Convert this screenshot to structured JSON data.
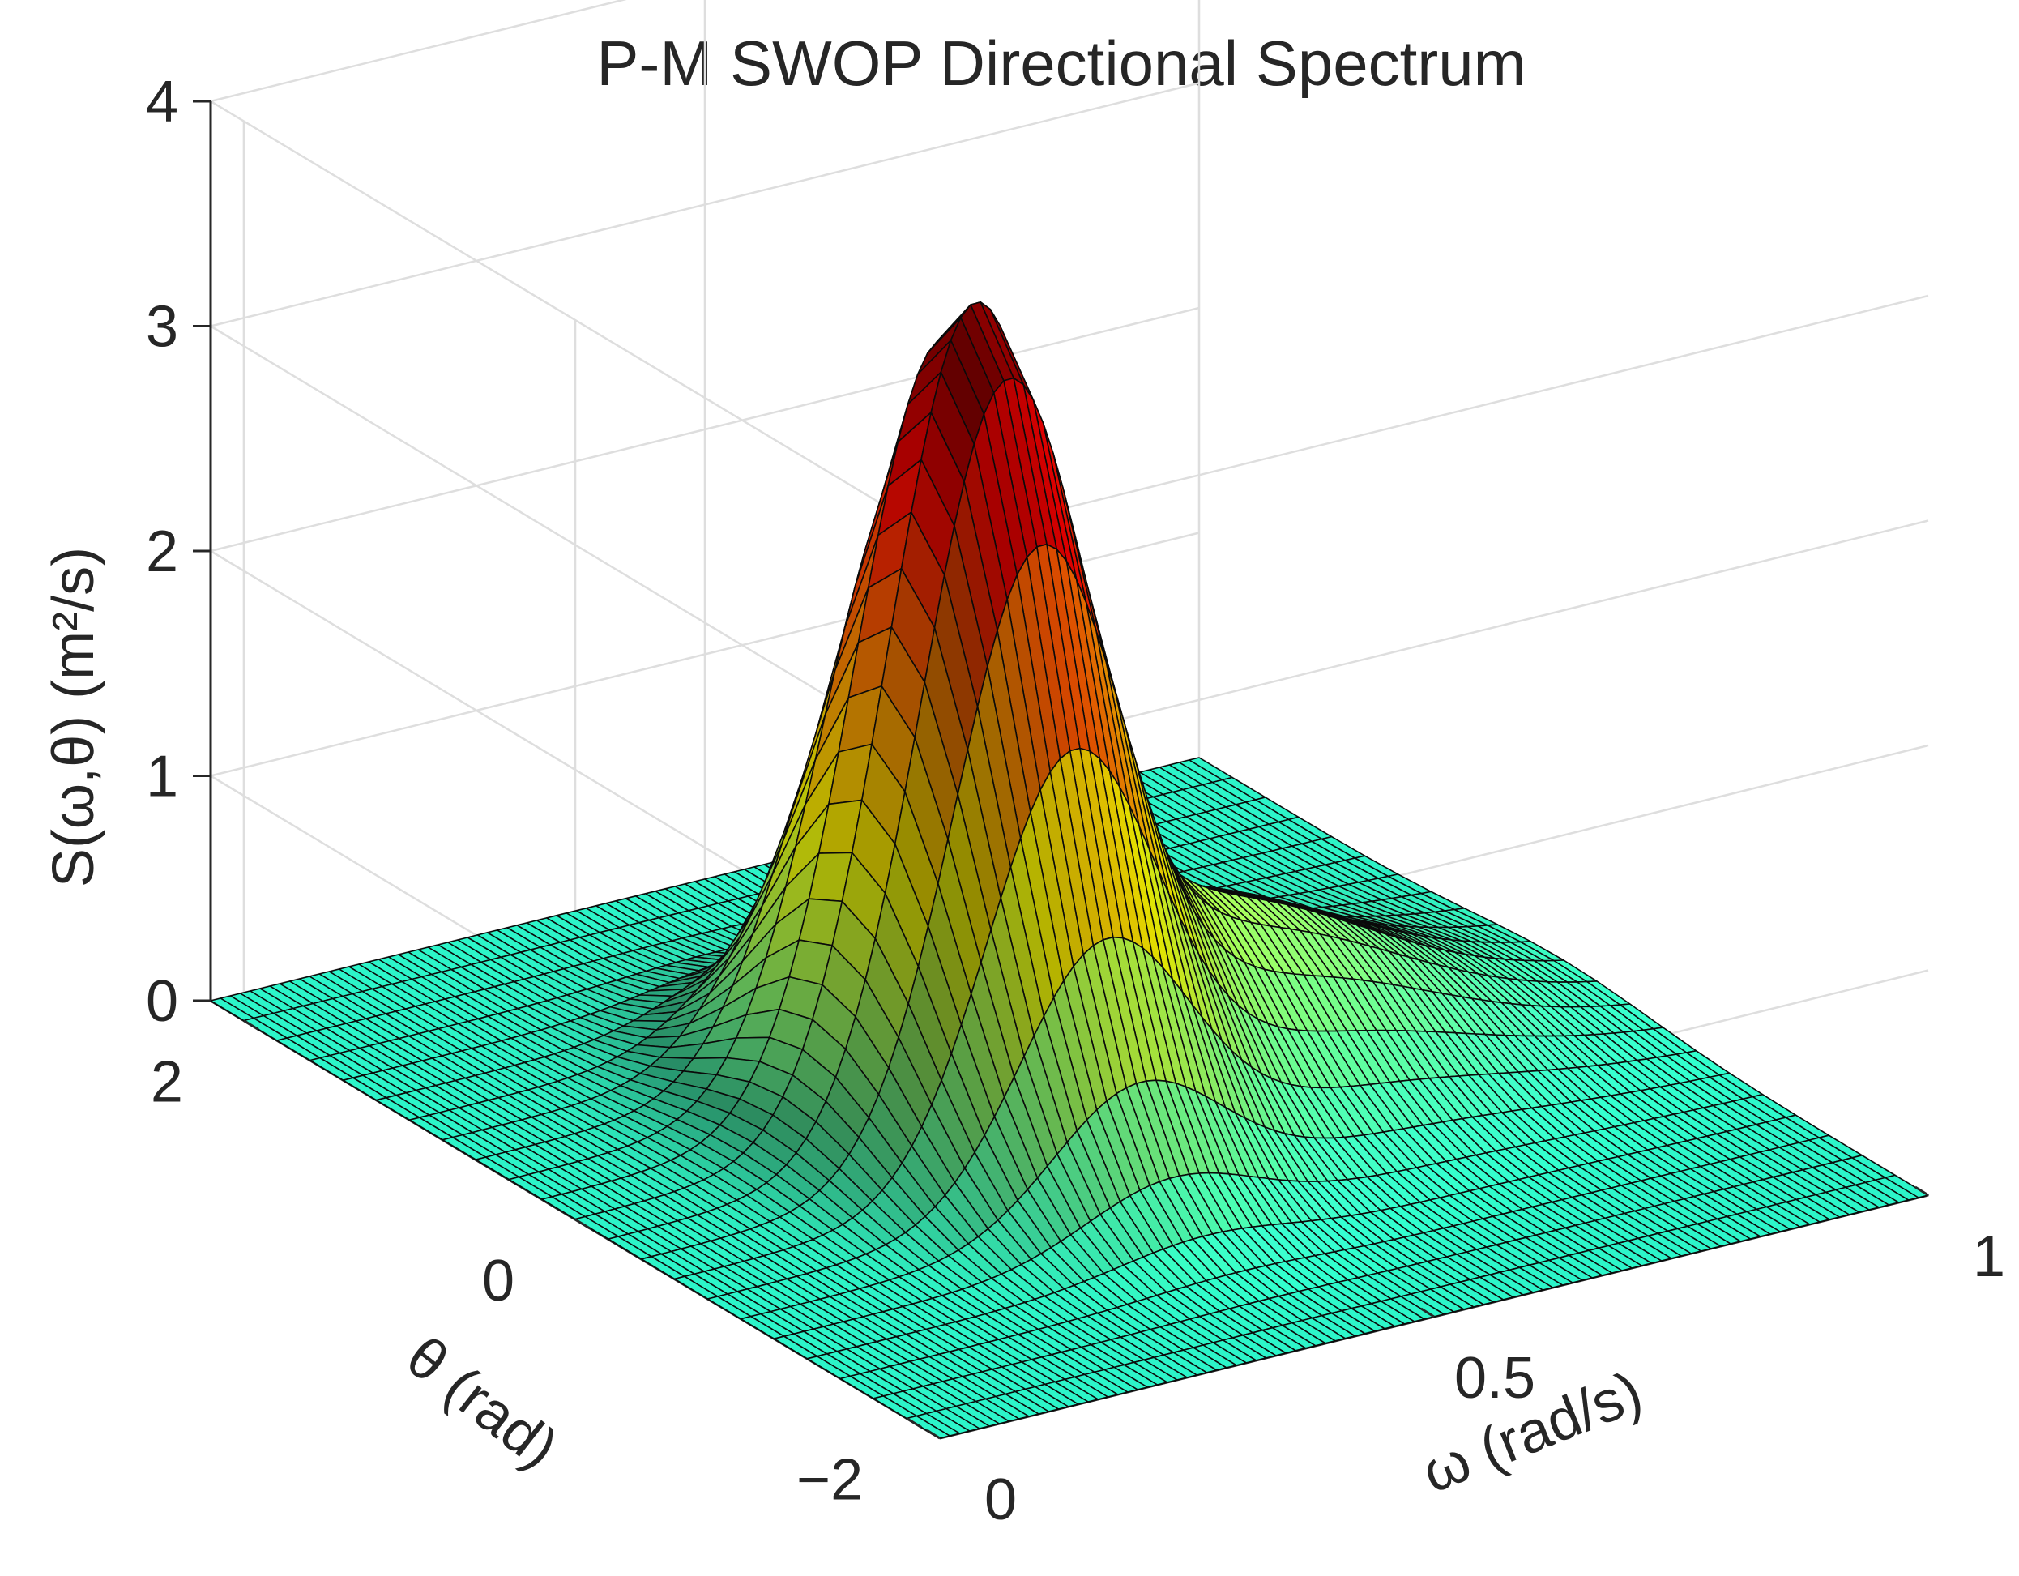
{
  "chart_data": {
    "type": "surface",
    "title": "P-M SWOP Directional Spectrum",
    "xlabel": "ω (rad/s)",
    "ylabel": "θ (rad)",
    "zlabel": "S(ω,θ)  (m²/s)",
    "xlim": [
      0,
      1
    ],
    "ylim": [
      -2.2,
      2.2
    ],
    "zlim": [
      0,
      4
    ],
    "xticks": [
      0,
      0.5,
      1
    ],
    "xtick_labels": [
      "0",
      "0.5",
      "1"
    ],
    "yticks": [
      -2,
      0,
      2
    ],
    "ytick_labels": [
      "−2",
      "0",
      "2"
    ],
    "zticks": [
      0,
      1,
      2,
      3,
      4
    ],
    "ztick_labels": [
      "0",
      "1",
      "2",
      "3",
      "4"
    ],
    "grid": true,
    "colormap": "jet",
    "peak_value": 3.4,
    "peak_location": {
      "omega": 0.4,
      "theta": 0
    },
    "surface_grid": {
      "omega_range": [
        0,
        1
      ],
      "omega_samples": 101,
      "theta_range": [
        -2.2,
        2.2
      ],
      "theta_samples": 23
    }
  },
  "colors": {
    "background": "#ffffff",
    "grid": "#dedede",
    "axis": "#262626",
    "mesh_edge": "#0a0a0a"
  }
}
